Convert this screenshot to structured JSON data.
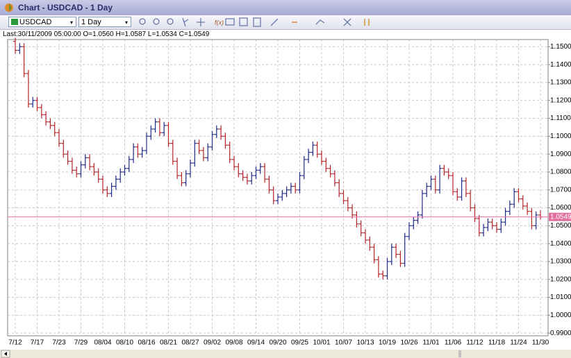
{
  "window": {
    "title": "Chart - USDCAD - 1 Day"
  },
  "toolbar": {
    "symbol": "USDCAD",
    "period": "1 Day"
  },
  "info_line": "Last:30/11/2009 05:00:00 O=1.0560 H=1.0587 L=1.0534 C=1.0549",
  "chart_data": {
    "type": "ohlc",
    "categories": [
      "7/12",
      null,
      null,
      null,
      null,
      "7/17",
      null,
      null,
      null,
      null,
      "7/23",
      null,
      null,
      null,
      null,
      "7/29",
      null,
      null,
      null,
      null,
      "08/04",
      null,
      null,
      null,
      null,
      "08/10",
      null,
      null,
      null,
      null,
      "08/16",
      null,
      null,
      null,
      null,
      "08/21",
      null,
      null,
      null,
      null,
      "08/27",
      null,
      null,
      null,
      null,
      "09/02",
      null,
      null,
      null,
      null,
      "09/08",
      null,
      null,
      null,
      null,
      "09/14",
      null,
      null,
      null,
      null,
      "09/20",
      null,
      null,
      null,
      null,
      "09/25",
      null,
      null,
      null,
      null,
      "10/01",
      null,
      null,
      null,
      null,
      "10/07",
      null,
      null,
      null,
      null,
      "10/13",
      null,
      null,
      null,
      null,
      "10/19",
      null,
      null,
      null,
      null,
      "10/26",
      null,
      null,
      null,
      null,
      "11/01",
      null,
      null,
      null,
      null,
      "11/06",
      null,
      null,
      null,
      null,
      "11/12",
      null,
      null,
      null,
      null,
      "11/18",
      null,
      null,
      null,
      null,
      "11/24",
      null,
      null,
      null,
      null,
      "11/30"
    ],
    "open": [
      1.153,
      1.148,
      1.15,
      1.135,
      1.118,
      1.12,
      1.116,
      1.112,
      1.108,
      1.106,
      1.102,
      1.096,
      1.09,
      1.086,
      1.081,
      1.079,
      1.084,
      1.088,
      1.083,
      1.08,
      1.076,
      1.07,
      1.068,
      1.072,
      1.076,
      1.08,
      1.082,
      1.087,
      1.094,
      1.09,
      1.092,
      1.1,
      1.104,
      1.108,
      1.102,
      1.106,
      1.096,
      1.086,
      1.078,
      1.074,
      1.079,
      1.085,
      1.096,
      1.092,
      1.088,
      1.094,
      1.101,
      1.104,
      1.1,
      1.095,
      1.087,
      1.083,
      1.079,
      1.077,
      1.075,
      1.078,
      1.081,
      1.083,
      1.076,
      1.07,
      1.064,
      1.066,
      1.068,
      1.07,
      1.072,
      1.07,
      1.078,
      1.087,
      1.091,
      1.095,
      1.09,
      1.086,
      1.082,
      1.079,
      1.074,
      1.068,
      1.064,
      1.06,
      1.056,
      1.051,
      1.046,
      1.042,
      1.038,
      1.031,
      1.023,
      1.022,
      1.03,
      1.038,
      1.034,
      1.029,
      1.044,
      1.05,
      1.053,
      1.056,
      1.068,
      1.072,
      1.076,
      1.07,
      1.082,
      1.08,
      1.078,
      1.069,
      1.066,
      1.075,
      1.068,
      1.06,
      1.054,
      1.046,
      1.049,
      1.052,
      1.05,
      1.048,
      1.052,
      1.058,
      1.062,
      1.069,
      1.065,
      1.061,
      1.058,
      1.05,
      1.056
    ],
    "high": [
      1.155,
      1.152,
      1.152,
      1.137,
      1.122,
      1.122,
      1.118,
      1.114,
      1.11,
      1.108,
      1.104,
      1.098,
      1.092,
      1.088,
      1.083,
      1.086,
      1.09,
      1.09,
      1.085,
      1.082,
      1.078,
      1.072,
      1.074,
      1.078,
      1.082,
      1.084,
      1.089,
      1.096,
      1.096,
      1.094,
      1.102,
      1.106,
      1.11,
      1.11,
      1.108,
      1.108,
      1.098,
      1.088,
      1.08,
      1.081,
      1.087,
      1.098,
      1.098,
      1.094,
      1.096,
      1.103,
      1.106,
      1.106,
      1.102,
      1.097,
      1.089,
      1.085,
      1.081,
      1.079,
      1.08,
      1.083,
      1.085,
      1.085,
      1.078,
      1.072,
      1.068,
      1.07,
      1.072,
      1.074,
      1.074,
      1.08,
      1.089,
      1.093,
      1.097,
      1.097,
      1.092,
      1.088,
      1.084,
      1.081,
      1.076,
      1.07,
      1.066,
      1.062,
      1.058,
      1.053,
      1.048,
      1.044,
      1.04,
      1.033,
      1.025,
      1.032,
      1.04,
      1.04,
      1.036,
      1.046,
      1.052,
      1.055,
      1.058,
      1.07,
      1.074,
      1.078,
      1.078,
      1.084,
      1.084,
      1.082,
      1.08,
      1.071,
      1.077,
      1.077,
      1.07,
      1.062,
      1.056,
      1.051,
      1.054,
      1.054,
      1.052,
      1.054,
      1.06,
      1.064,
      1.071,
      1.071,
      1.067,
      1.063,
      1.06,
      1.058,
      1.0587
    ],
    "low": [
      1.146,
      1.146,
      1.133,
      1.116,
      1.116,
      1.114,
      1.11,
      1.106,
      1.104,
      1.1,
      1.094,
      1.088,
      1.084,
      1.079,
      1.077,
      1.077,
      1.082,
      1.081,
      1.078,
      1.074,
      1.068,
      1.066,
      1.066,
      1.07,
      1.074,
      1.078,
      1.08,
      1.085,
      1.088,
      1.088,
      1.09,
      1.098,
      1.102,
      1.1,
      1.1,
      1.094,
      1.084,
      1.076,
      1.072,
      1.072,
      1.077,
      1.083,
      1.09,
      1.086,
      1.086,
      1.092,
      1.099,
      1.098,
      1.093,
      1.085,
      1.081,
      1.077,
      1.075,
      1.073,
      1.073,
      1.076,
      1.079,
      1.074,
      1.068,
      1.062,
      1.062,
      1.064,
      1.066,
      1.068,
      1.068,
      1.068,
      1.076,
      1.085,
      1.089,
      1.088,
      1.084,
      1.08,
      1.077,
      1.072,
      1.066,
      1.062,
      1.058,
      1.054,
      1.049,
      1.044,
      1.04,
      1.036,
      1.029,
      1.021,
      1.02,
      1.02,
      1.028,
      1.032,
      1.027,
      1.027,
      1.042,
      1.048,
      1.051,
      1.054,
      1.066,
      1.07,
      1.068,
      1.068,
      1.078,
      1.076,
      1.067,
      1.064,
      1.064,
      1.066,
      1.058,
      1.052,
      1.044,
      1.044,
      1.047,
      1.048,
      1.046,
      1.046,
      1.05,
      1.056,
      1.06,
      1.063,
      1.059,
      1.056,
      1.048,
      1.048,
      1.0534
    ],
    "close": [
      1.148,
      1.15,
      1.135,
      1.118,
      1.12,
      1.116,
      1.112,
      1.108,
      1.106,
      1.102,
      1.096,
      1.09,
      1.086,
      1.081,
      1.079,
      1.084,
      1.088,
      1.083,
      1.08,
      1.076,
      1.07,
      1.068,
      1.072,
      1.076,
      1.08,
      1.082,
      1.087,
      1.094,
      1.09,
      1.092,
      1.1,
      1.104,
      1.108,
      1.102,
      1.106,
      1.096,
      1.086,
      1.078,
      1.074,
      1.079,
      1.085,
      1.096,
      1.092,
      1.088,
      1.094,
      1.101,
      1.104,
      1.1,
      1.095,
      1.087,
      1.083,
      1.079,
      1.077,
      1.075,
      1.078,
      1.081,
      1.083,
      1.076,
      1.07,
      1.064,
      1.066,
      1.068,
      1.07,
      1.072,
      1.07,
      1.078,
      1.087,
      1.091,
      1.095,
      1.09,
      1.086,
      1.082,
      1.079,
      1.074,
      1.068,
      1.064,
      1.06,
      1.056,
      1.051,
      1.046,
      1.042,
      1.038,
      1.031,
      1.023,
      1.022,
      1.03,
      1.038,
      1.034,
      1.029,
      1.044,
      1.05,
      1.053,
      1.056,
      1.068,
      1.072,
      1.076,
      1.07,
      1.082,
      1.08,
      1.078,
      1.069,
      1.066,
      1.075,
      1.068,
      1.06,
      1.054,
      1.046,
      1.049,
      1.052,
      1.05,
      1.048,
      1.052,
      1.058,
      1.062,
      1.069,
      1.065,
      1.061,
      1.058,
      1.05,
      1.056,
      1.0549
    ],
    "up_color": "#1f2a8a",
    "down_color": "#b3262a",
    "ylim": [
      0.9885,
      1.154
    ],
    "yticks": [
      {
        "value": 0.99,
        "label": "0.9900"
      },
      {
        "value": 1.0,
        "label": "1.0000"
      },
      {
        "value": 1.01,
        "label": "1.0100"
      },
      {
        "value": 1.02,
        "label": "1.0200"
      },
      {
        "value": 1.03,
        "label": "1.0300"
      },
      {
        "value": 1.04,
        "label": "1.0400"
      },
      {
        "value": 1.05,
        "label": "1.0500"
      },
      {
        "value": 1.06,
        "label": "1.0600"
      },
      {
        "value": 1.07,
        "label": "1.0700"
      },
      {
        "value": 1.08,
        "label": "1.0800"
      },
      {
        "value": 1.09,
        "label": "1.0900"
      },
      {
        "value": 1.1,
        "label": "1.1000"
      },
      {
        "value": 1.11,
        "label": "1.1100"
      },
      {
        "value": 1.12,
        "label": "1.1200"
      },
      {
        "value": 1.13,
        "label": "1.1300"
      },
      {
        "value": 1.14,
        "label": "1.1400"
      },
      {
        "value": 1.15,
        "label": "1.1500"
      }
    ],
    "last_price": {
      "value": 1.0549,
      "label": "1.0549"
    },
    "grid": true
  }
}
